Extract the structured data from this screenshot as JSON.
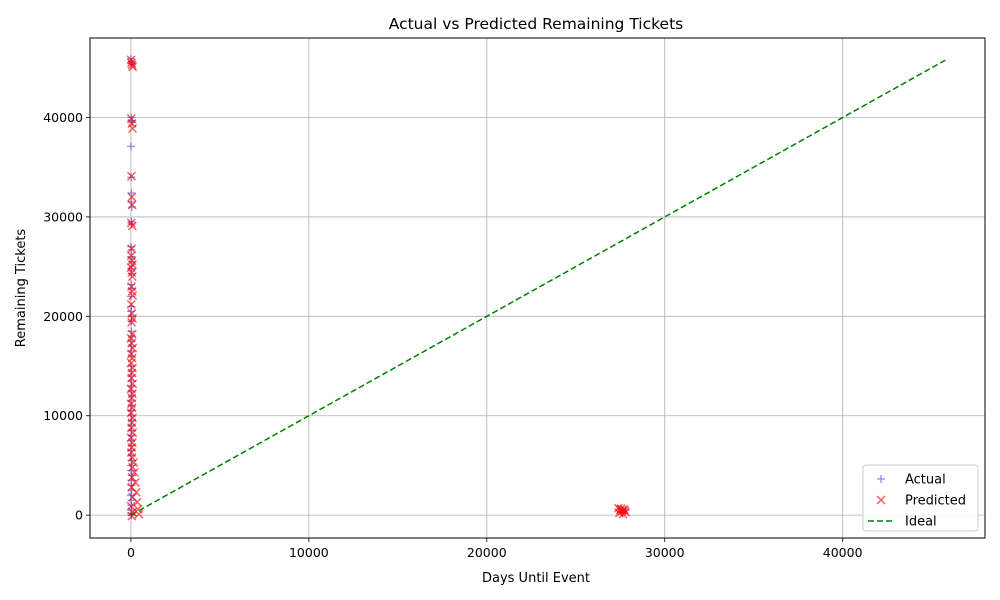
{
  "chart_data": {
    "type": "scatter",
    "title": "Actual vs Predicted Remaining Tickets",
    "xlabel": "Days Until Event",
    "ylabel": "Remaining Tickets",
    "xlim": [
      -2300,
      48000
    ],
    "ylim": [
      -2300,
      48000
    ],
    "xticks": [
      0,
      10000,
      20000,
      30000,
      40000
    ],
    "yticks": [
      0,
      10000,
      20000,
      30000,
      40000
    ],
    "grid": true,
    "legend_position": "lower-right",
    "series": [
      {
        "name": "Actual",
        "marker": "plus",
        "color": "#4a4ae0",
        "points": [
          [
            0,
            45900
          ],
          [
            20,
            45600
          ],
          [
            60,
            45400
          ],
          [
            10,
            40000
          ],
          [
            40,
            39700
          ],
          [
            80,
            39500
          ],
          [
            5,
            37100
          ],
          [
            20,
            34000
          ],
          [
            30,
            32400
          ],
          [
            15,
            31500
          ],
          [
            50,
            31000
          ],
          [
            25,
            29500
          ],
          [
            40,
            29300
          ],
          [
            10,
            27000
          ],
          [
            30,
            26700
          ],
          [
            5,
            26000
          ],
          [
            60,
            25500
          ],
          [
            20,
            24800
          ],
          [
            35,
            24300
          ],
          [
            15,
            23200
          ],
          [
            45,
            22800
          ],
          [
            10,
            22000
          ],
          [
            25,
            21000
          ],
          [
            5,
            20500
          ],
          [
            40,
            20000
          ],
          [
            20,
            19500
          ],
          [
            30,
            18500
          ],
          [
            55,
            18000
          ],
          [
            10,
            17500
          ],
          [
            35,
            17000
          ],
          [
            15,
            16500
          ],
          [
            45,
            16000
          ],
          [
            5,
            15000
          ],
          [
            25,
            14500
          ],
          [
            20,
            14000
          ],
          [
            40,
            13500
          ],
          [
            10,
            13000
          ],
          [
            30,
            12500
          ],
          [
            50,
            12000
          ],
          [
            15,
            11500
          ],
          [
            35,
            11000
          ],
          [
            5,
            10500
          ],
          [
            25,
            10000
          ],
          [
            45,
            9500
          ],
          [
            20,
            9000
          ],
          [
            10,
            8500
          ],
          [
            30,
            8000
          ],
          [
            15,
            7500
          ],
          [
            40,
            7000
          ],
          [
            5,
            6500
          ],
          [
            25,
            6000
          ],
          [
            35,
            5500
          ],
          [
            20,
            5000
          ],
          [
            10,
            4500
          ],
          [
            50,
            4000
          ],
          [
            30,
            3500
          ],
          [
            15,
            3000
          ],
          [
            45,
            2500
          ],
          [
            5,
            2000
          ],
          [
            25,
            1500
          ],
          [
            20,
            1000
          ],
          [
            40,
            500
          ],
          [
            10,
            200
          ],
          [
            30,
            0
          ],
          [
            27400,
            600
          ],
          [
            27600,
            300
          ],
          [
            27800,
            500
          ]
        ]
      },
      {
        "name": "Predicted",
        "marker": "x",
        "color": "#ff0000",
        "points": [
          [
            10,
            45800
          ],
          [
            30,
            45500
          ],
          [
            70,
            45300
          ],
          [
            100,
            45100
          ],
          [
            20,
            39900
          ],
          [
            60,
            39400
          ],
          [
            90,
            38900
          ],
          [
            30,
            34100
          ],
          [
            50,
            32000
          ],
          [
            70,
            31200
          ],
          [
            20,
            29400
          ],
          [
            80,
            29100
          ],
          [
            40,
            26800
          ],
          [
            20,
            26100
          ],
          [
            60,
            25600
          ],
          [
            90,
            25200
          ],
          [
            10,
            24900
          ],
          [
            50,
            24400
          ],
          [
            80,
            24000
          ],
          [
            30,
            23000
          ],
          [
            70,
            22500
          ],
          [
            100,
            22100
          ],
          [
            20,
            21200
          ],
          [
            60,
            20300
          ],
          [
            90,
            19800
          ],
          [
            40,
            19400
          ],
          [
            80,
            18200
          ],
          [
            10,
            17800
          ],
          [
            50,
            17300
          ],
          [
            100,
            16800
          ],
          [
            30,
            16200
          ],
          [
            70,
            15800
          ],
          [
            20,
            15300
          ],
          [
            90,
            14800
          ],
          [
            60,
            14300
          ],
          [
            40,
            13800
          ],
          [
            100,
            13200
          ],
          [
            10,
            12700
          ],
          [
            80,
            12200
          ],
          [
            50,
            11800
          ],
          [
            30,
            11200
          ],
          [
            70,
            10800
          ],
          [
            20,
            10300
          ],
          [
            90,
            9800
          ],
          [
            60,
            9300
          ],
          [
            40,
            8800
          ],
          [
            100,
            8300
          ],
          [
            10,
            7800
          ],
          [
            80,
            7300
          ],
          [
            50,
            6800
          ],
          [
            30,
            6300
          ],
          [
            70,
            5800
          ],
          [
            150,
            5300
          ],
          [
            90,
            4800
          ],
          [
            200,
            4300
          ],
          [
            60,
            3800
          ],
          [
            250,
            3300
          ],
          [
            40,
            2800
          ],
          [
            300,
            2300
          ],
          [
            100,
            1800
          ],
          [
            350,
            1300
          ],
          [
            10,
            900
          ],
          [
            400,
            600
          ],
          [
            80,
            300
          ],
          [
            450,
            100
          ],
          [
            50,
            -100
          ],
          [
            27400,
            700
          ],
          [
            27500,
            500
          ],
          [
            27600,
            400
          ],
          [
            27700,
            600
          ],
          [
            27800,
            300
          ],
          [
            27450,
            200
          ],
          [
            27650,
            100
          ],
          [
            27750,
            450
          ],
          [
            27550,
            650
          ]
        ]
      },
      {
        "name": "Ideal",
        "type": "line",
        "style": "dashed",
        "color": "#008000",
        "points": [
          [
            0,
            0
          ],
          [
            45900,
            45900
          ]
        ]
      }
    ]
  }
}
